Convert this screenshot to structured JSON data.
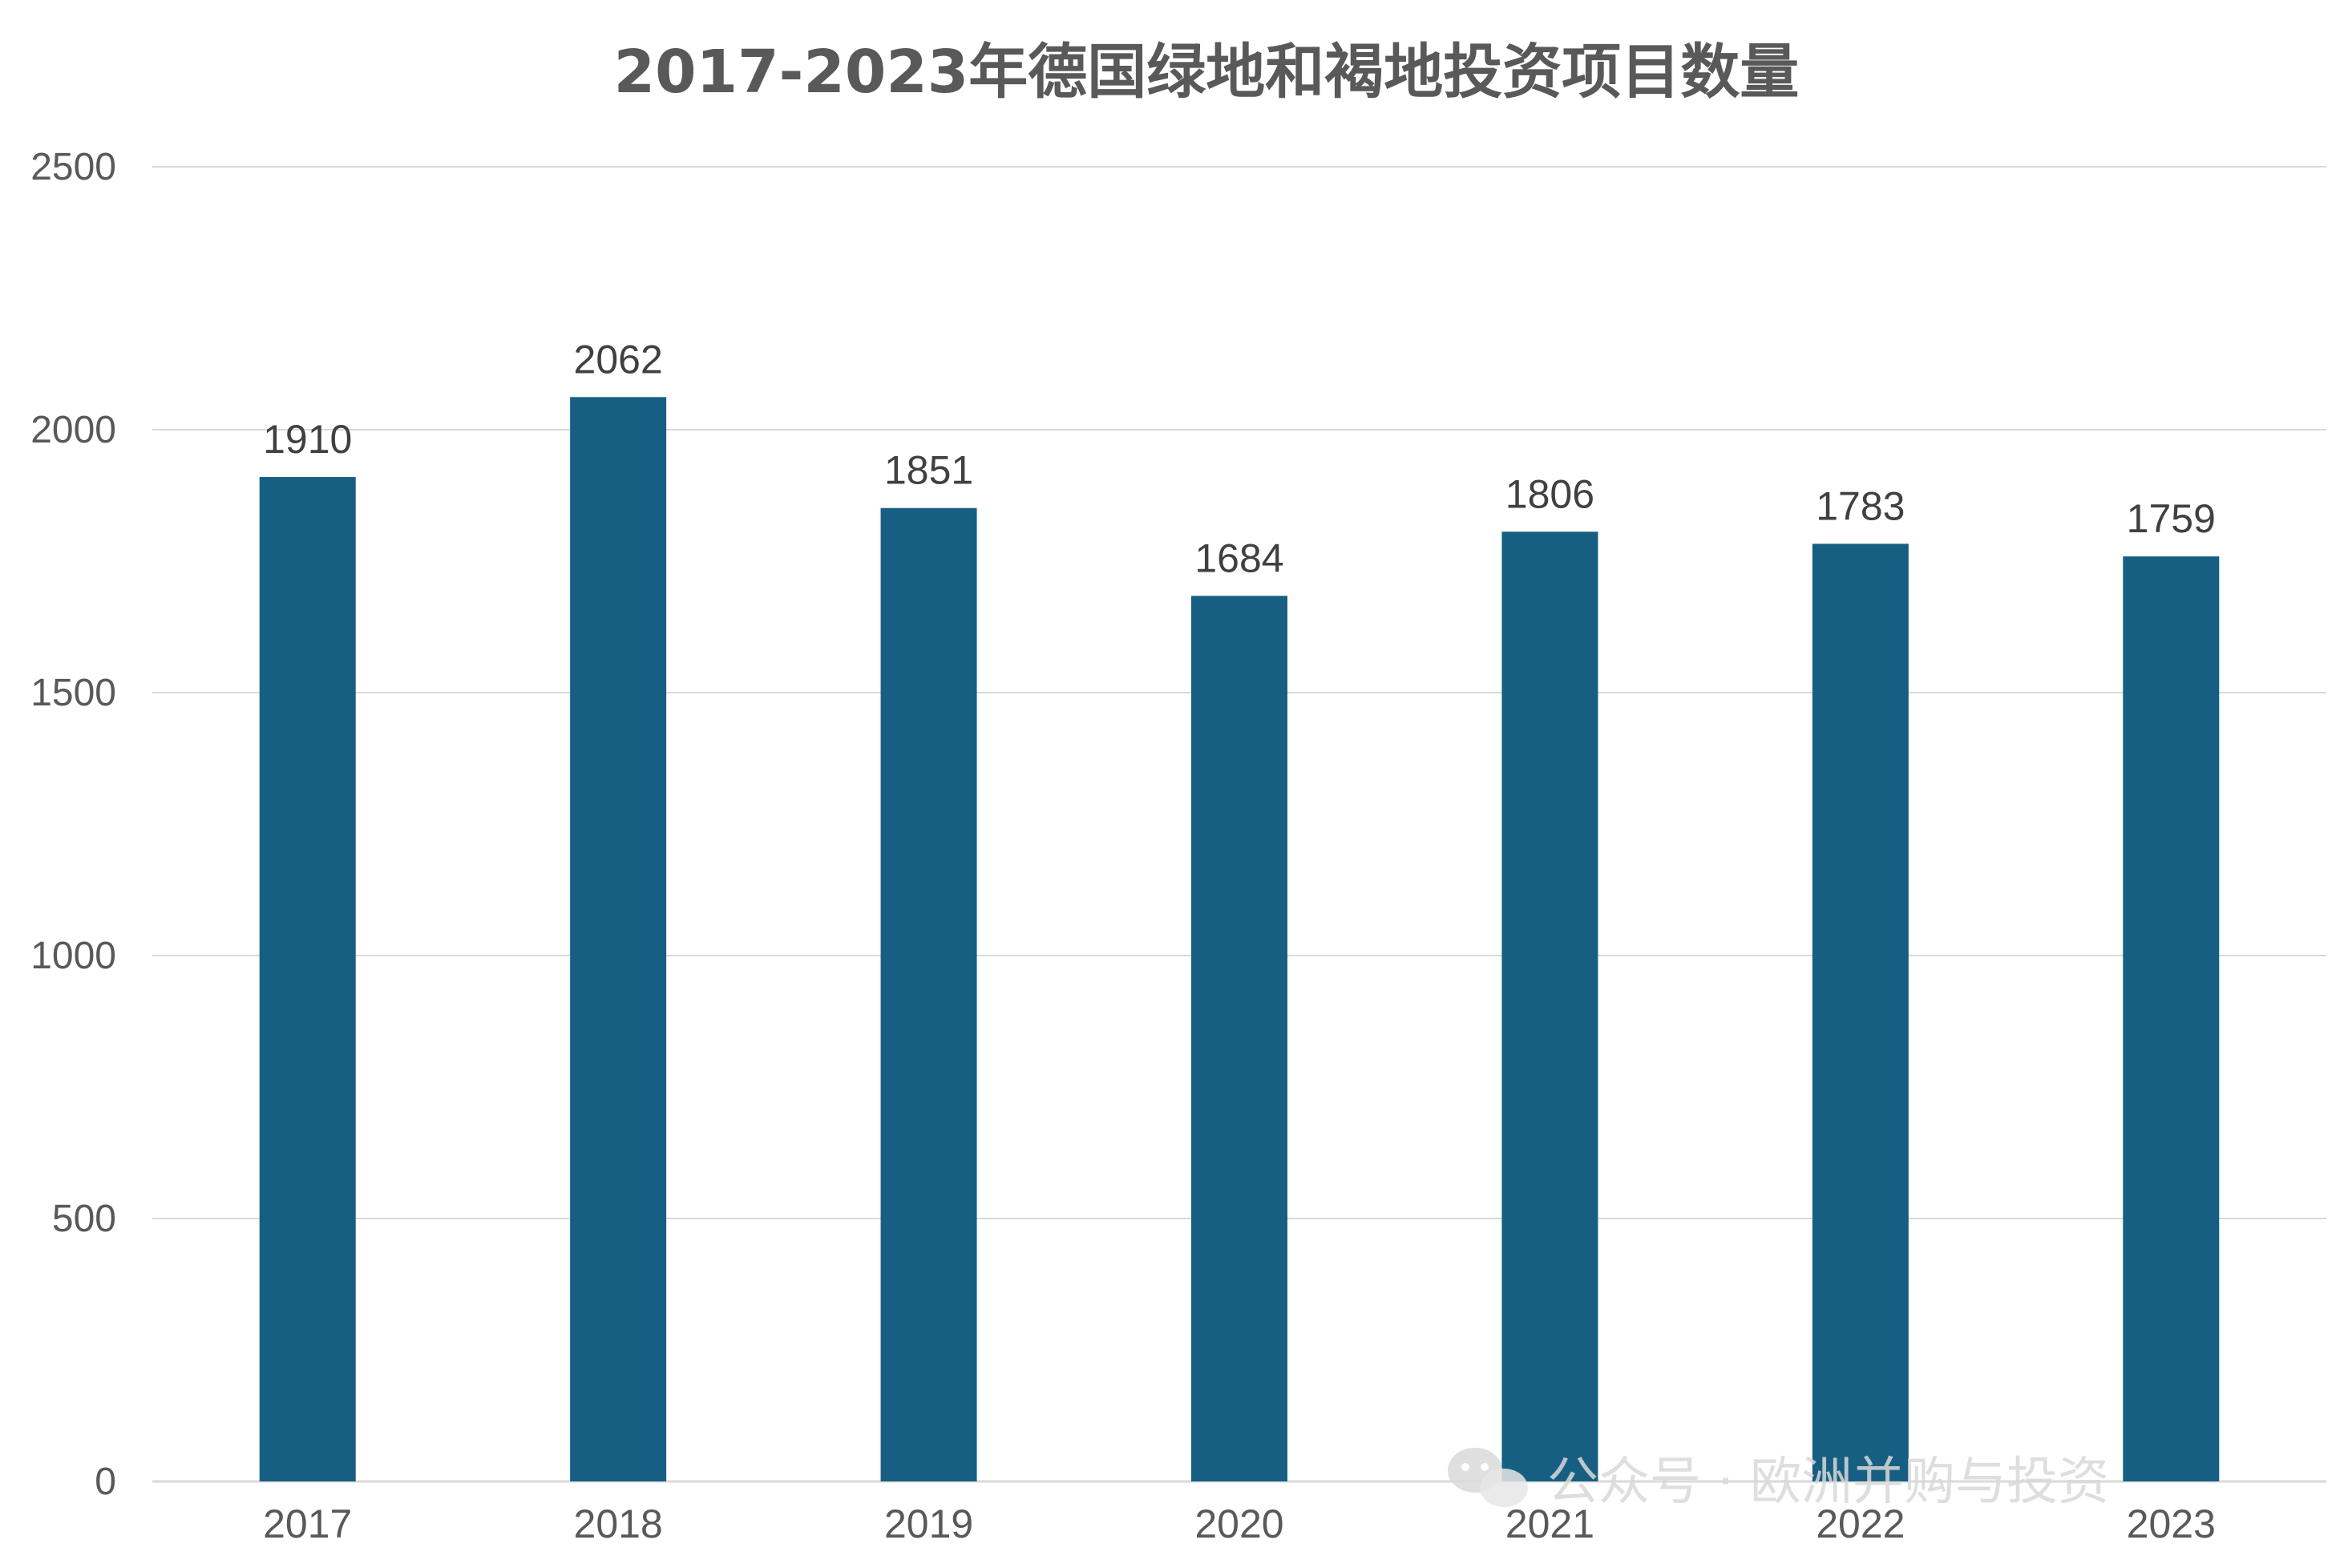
{
  "chart_data": {
    "type": "bar",
    "title": "2017-2023年德国绿地和褐地投资项目数量",
    "categories": [
      "2017",
      "2018",
      "2019",
      "2020",
      "2021",
      "2022",
      "2023"
    ],
    "values": [
      1910,
      2062,
      1851,
      1684,
      1806,
      1783,
      1759
    ],
    "data_labels": [
      "1910",
      "2062",
      "1851",
      "1684",
      "1806",
      "1783",
      "1759"
    ],
    "yticks": [
      "0",
      "500",
      "1000",
      "1500",
      "2000",
      "2500"
    ],
    "ylim": [
      0,
      2500
    ],
    "grid": true,
    "legend": "none",
    "bar_color": "#175F82",
    "grid_color": "#D9D9D9"
  },
  "watermark": {
    "icon": "wechat-icon",
    "text": "公众号 · 欧洲并购与投资"
  }
}
